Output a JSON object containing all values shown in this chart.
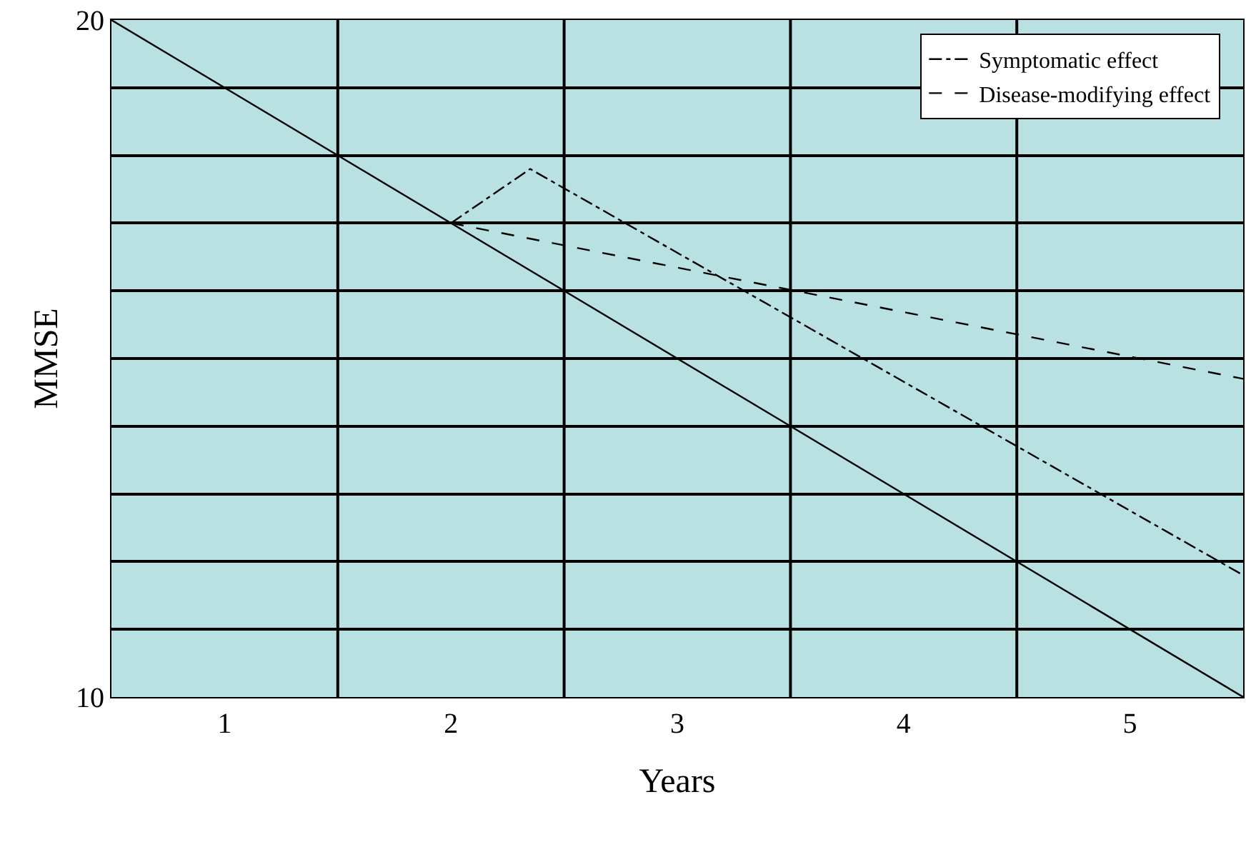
{
  "chart_data": {
    "type": "line",
    "xlabel": "Years",
    "ylabel": "MMSE",
    "xlim": [
      0.5,
      5.5
    ],
    "xticks": [
      1,
      2,
      3,
      4,
      5
    ],
    "ylim": [
      10,
      20
    ],
    "yticks": [
      10,
      {
        "value": 11,
        "label": null
      },
      {
        "value": 12,
        "label": null
      },
      {
        "value": 13,
        "label": null
      },
      {
        "value": 14,
        "label": null
      },
      {
        "value": 15,
        "label": null
      },
      {
        "value": 16,
        "label": null
      },
      {
        "value": 17,
        "label": null
      },
      {
        "value": 18,
        "label": null
      },
      {
        "value": 19,
        "label": null
      },
      20
    ],
    "grid": "y",
    "legend": "top right",
    "marker": "none",
    "ref_lines": [
      {
        "axis": "x",
        "value": 1.5,
        "color": "#000000"
      },
      {
        "axis": "x",
        "value": 2.5,
        "color": "#000000"
      },
      {
        "axis": "x",
        "value": 3.5,
        "color": "#000000"
      },
      {
        "axis": "x",
        "value": 4.5,
        "color": "#000000"
      }
    ],
    "series": [
      {
        "color": "#000000",
        "line_style": "solid",
        "x": [
          0.5,
          5.5
        ],
        "values": [
          20,
          10
        ]
      },
      {
        "name": "Symptomatic effect",
        "color": "#000000",
        "line_style": "dashdot",
        "x": [
          2,
          2.35,
          5.5
        ],
        "values": [
          17,
          17.8,
          11.8
        ]
      },
      {
        "name": "Disease-modifying effect",
        "color": "#000000",
        "line_style": "dashed",
        "x": [
          2,
          5.5
        ],
        "values": [
          17,
          14.7
        ]
      }
    ]
  }
}
